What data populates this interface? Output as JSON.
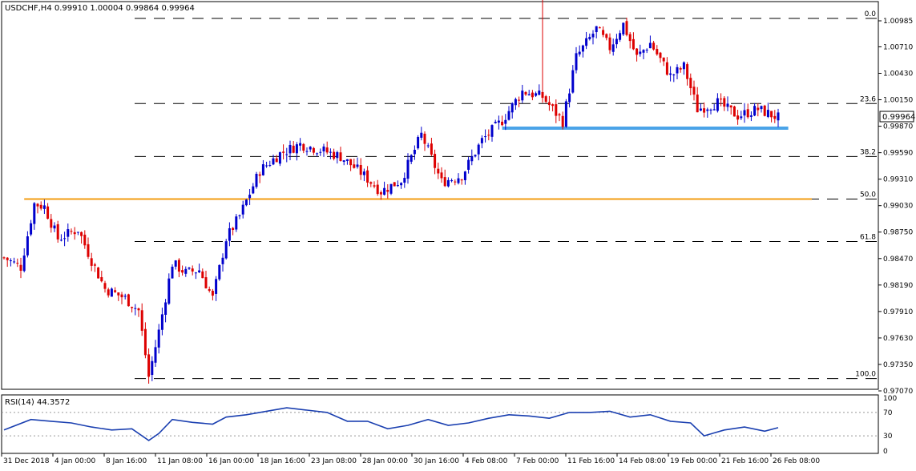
{
  "chart_data": {
    "type": "candlestick",
    "symbol_header": "USDCHF,H4  0.99910 1.00004 0.99864 0.99964",
    "current_price_label": "0.99964",
    "colors": {
      "up": "#0000cc",
      "down": "#dd0000",
      "support": "#4aa3e8",
      "fib_50_line": "#f39c12",
      "rsi_line": "#1a3fb0"
    },
    "y_ticks": [
      "1.00985",
      "1.00710",
      "1.00430",
      "1.00150",
      "0.99870",
      "0.99590",
      "0.99310",
      "0.99030",
      "0.98750",
      "0.98470",
      "0.98190",
      "0.97910",
      "0.97630",
      "0.97350",
      "0.97070"
    ],
    "x_ticks": [
      "31 Dec 2018",
      "4 Jan 00:00",
      "8 Jan 16:00",
      "11 Jan 08:00",
      "16 Jan 00:00",
      "18 Jan 16:00",
      "23 Jan 08:00",
      "28 Jan 00:00",
      "30 Jan 16:00",
      "4 Feb 08:00",
      "7 Feb 00:00",
      "11 Feb 16:00",
      "14 Feb 08:00",
      "19 Feb 00:00",
      "21 Feb 16:00",
      "26 Feb 08:00"
    ],
    "fibonacci_levels": [
      {
        "label": "0.0",
        "price": 1.0101
      },
      {
        "label": "23.6",
        "price": 1.0011
      },
      {
        "label": "38.2",
        "price": 0.9955
      },
      {
        "label": "50.0",
        "price": 0.991
      },
      {
        "label": "61.8",
        "price": 0.9865
      },
      {
        "label": "100.0",
        "price": 0.972
      }
    ],
    "support_line": {
      "price": 0.9985,
      "from_index": 148,
      "to_index": 233
    },
    "fib50_line": {
      "price": 0.991,
      "from_index": 6,
      "to_index": 240
    },
    "price_path": [
      [
        0,
        0.9848
      ],
      [
        5,
        0.9838
      ],
      [
        9,
        0.9905
      ],
      [
        12,
        0.9902
      ],
      [
        16,
        0.9868
      ],
      [
        22,
        0.9878
      ],
      [
        26,
        0.9845
      ],
      [
        30,
        0.9815
      ],
      [
        36,
        0.9805
      ],
      [
        40,
        0.9792
      ],
      [
        43,
        0.9722
      ],
      [
        46,
        0.977
      ],
      [
        50,
        0.9842
      ],
      [
        54,
        0.9832
      ],
      [
        58,
        0.9835
      ],
      [
        62,
        0.9805
      ],
      [
        66,
        0.9868
      ],
      [
        70,
        0.9892
      ],
      [
        76,
        0.994
      ],
      [
        82,
        0.9958
      ],
      [
        88,
        0.9968
      ],
      [
        94,
        0.9962
      ],
      [
        100,
        0.9955
      ],
      [
        106,
        0.9938
      ],
      [
        112,
        0.9918
      ],
      [
        118,
        0.993
      ],
      [
        124,
        0.9978
      ],
      [
        130,
        0.9928
      ],
      [
        136,
        0.9935
      ],
      [
        142,
        0.9972
      ],
      [
        148,
        0.9993
      ],
      [
        154,
        1.0024
      ],
      [
        160,
        1.0018
      ],
      [
        166,
        0.9992
      ],
      [
        170,
        1.006
      ],
      [
        176,
        1.009
      ],
      [
        180,
        1.007
      ],
      [
        184,
        1.0095
      ],
      [
        188,
        1.006
      ],
      [
        192,
        1.0075
      ],
      [
        198,
        1.004
      ],
      [
        202,
        1.005
      ],
      [
        206,
        1.0005
      ],
      [
        212,
        1.0012
      ],
      [
        218,
        0.9998
      ],
      [
        224,
        1.0005
      ],
      [
        230,
        0.9996
      ]
    ],
    "rsi": {
      "label": "RSI(14) 44.3572",
      "levels": [
        "70",
        "30"
      ],
      "axis_labels": [
        "100",
        "70",
        "30",
        "0"
      ],
      "path": [
        [
          0,
          40
        ],
        [
          8,
          58
        ],
        [
          14,
          55
        ],
        [
          20,
          52
        ],
        [
          26,
          45
        ],
        [
          32,
          40
        ],
        [
          38,
          42
        ],
        [
          43,
          22
        ],
        [
          46,
          34
        ],
        [
          50,
          58
        ],
        [
          56,
          53
        ],
        [
          62,
          50
        ],
        [
          66,
          62
        ],
        [
          72,
          66
        ],
        [
          78,
          72
        ],
        [
          84,
          78
        ],
        [
          90,
          74
        ],
        [
          96,
          70
        ],
        [
          102,
          55
        ],
        [
          108,
          55
        ],
        [
          114,
          42
        ],
        [
          120,
          48
        ],
        [
          126,
          58
        ],
        [
          132,
          48
        ],
        [
          138,
          52
        ],
        [
          144,
          60
        ],
        [
          150,
          66
        ],
        [
          156,
          64
        ],
        [
          162,
          60
        ],
        [
          168,
          70
        ],
        [
          174,
          70
        ],
        [
          180,
          72
        ],
        [
          186,
          62
        ],
        [
          192,
          66
        ],
        [
          198,
          55
        ],
        [
          204,
          52
        ],
        [
          208,
          30
        ],
        [
          214,
          40
        ],
        [
          220,
          45
        ],
        [
          226,
          38
        ],
        [
          230,
          44
        ]
      ]
    }
  }
}
